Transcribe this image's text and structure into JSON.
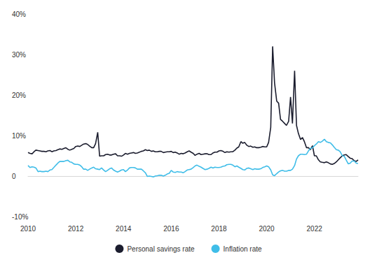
{
  "chart_data": {
    "type": "line",
    "x": [
      2010,
      2010.08,
      2010.17,
      2010.25,
      2010.33,
      2010.42,
      2010.5,
      2010.58,
      2010.67,
      2010.75,
      2010.83,
      2010.92,
      2011,
      2011.08,
      2011.17,
      2011.25,
      2011.33,
      2011.42,
      2011.5,
      2011.58,
      2011.67,
      2011.75,
      2011.83,
      2011.92,
      2012,
      2012.08,
      2012.17,
      2012.25,
      2012.33,
      2012.42,
      2012.5,
      2012.58,
      2012.67,
      2012.75,
      2012.83,
      2012.92,
      2013,
      2013.08,
      2013.17,
      2013.25,
      2013.33,
      2013.42,
      2013.5,
      2013.58,
      2013.67,
      2013.75,
      2013.83,
      2013.92,
      2014,
      2014.08,
      2014.17,
      2014.25,
      2014.33,
      2014.42,
      2014.5,
      2014.58,
      2014.67,
      2014.75,
      2014.83,
      2014.92,
      2015,
      2015.08,
      2015.17,
      2015.25,
      2015.33,
      2015.42,
      2015.5,
      2015.58,
      2015.67,
      2015.75,
      2015.83,
      2015.92,
      2016,
      2016.08,
      2016.17,
      2016.25,
      2016.33,
      2016.42,
      2016.5,
      2016.58,
      2016.67,
      2016.75,
      2016.83,
      2016.92,
      2017,
      2017.08,
      2017.17,
      2017.25,
      2017.33,
      2017.42,
      2017.5,
      2017.58,
      2017.67,
      2017.75,
      2017.83,
      2017.92,
      2018,
      2018.08,
      2018.17,
      2018.25,
      2018.33,
      2018.42,
      2018.5,
      2018.58,
      2018.67,
      2018.75,
      2018.83,
      2018.92,
      2019,
      2019.08,
      2019.17,
      2019.25,
      2019.33,
      2019.42,
      2019.5,
      2019.58,
      2019.67,
      2019.75,
      2019.83,
      2019.92,
      2020,
      2020.08,
      2020.17,
      2020.25,
      2020.33,
      2020.42,
      2020.5,
      2020.58,
      2020.67,
      2020.75,
      2020.83,
      2020.92,
      2021,
      2021.08,
      2021.17,
      2021.25,
      2021.33,
      2021.42,
      2021.5,
      2021.58,
      2021.67,
      2021.75,
      2021.83,
      2021.92,
      2022,
      2022.08,
      2022.17,
      2022.25,
      2022.33,
      2022.42,
      2022.5,
      2022.58,
      2022.67,
      2022.75,
      2022.83,
      2022.92,
      2023,
      2023.08,
      2023.17,
      2023.25,
      2023.33,
      2023.42,
      2023.5,
      2023.58,
      2023.67,
      2023.75,
      2023.83
    ],
    "series": [
      {
        "name": "Personal savings rate",
        "color": "#1b1d2e",
        "values": [
          5.8,
          5.6,
          5.5,
          6.0,
          6.4,
          6.3,
          6.2,
          6.1,
          6.1,
          6.0,
          6.2,
          6.3,
          6.0,
          6.2,
          6.3,
          6.5,
          6.7,
          6.6,
          6.8,
          7.0,
          6.6,
          6.4,
          6.6,
          6.8,
          7.3,
          7.4,
          7.3,
          7.6,
          7.9,
          8.0,
          7.8,
          7.4,
          7.0,
          7.0,
          8.0,
          10.8,
          4.9,
          5.0,
          5.0,
          5.3,
          5.4,
          5.2,
          5.2,
          5.4,
          5.5,
          5.0,
          5.0,
          4.9,
          5.2,
          5.6,
          5.4,
          5.6,
          5.7,
          5.8,
          5.6,
          5.7,
          5.9,
          6.1,
          6.2,
          6.5,
          6.3,
          6.4,
          6.1,
          6.2,
          6.0,
          6.0,
          6.1,
          6.1,
          5.8,
          5.9,
          6.0,
          6.0,
          6.1,
          5.8,
          5.9,
          5.7,
          5.4,
          5.6,
          5.5,
          5.7,
          6.0,
          6.2,
          5.9,
          5.6,
          5.1,
          5.4,
          5.6,
          5.3,
          5.4,
          5.5,
          5.5,
          5.3,
          5.3,
          5.7,
          5.9,
          5.9,
          6.2,
          6.3,
          6.1,
          5.8,
          6.0,
          5.9,
          6.0,
          6.0,
          6.4,
          6.9,
          7.2,
          8.5,
          8.1,
          8.3,
          7.6,
          7.3,
          7.4,
          7.1,
          7.2,
          7.0,
          7.0,
          7.1,
          7.3,
          7.2,
          7.2,
          8.3,
          12.0,
          32.0,
          23.0,
          18.5,
          18.0,
          14.0,
          13.5,
          13.0,
          12.5,
          13.5,
          19.5,
          13.0,
          26.0,
          12.5,
          10.5,
          9.0,
          9.5,
          8.5,
          7.0,
          7.0,
          6.5,
          7.5,
          5.0,
          5.0,
          4.0,
          3.5,
          3.4,
          3.3,
          3.5,
          3.3,
          3.0,
          2.9,
          3.1,
          3.5,
          4.0,
          4.5,
          5.0,
          5.2,
          5.3,
          4.8,
          4.4,
          4.3,
          3.8,
          3.6,
          4.0
        ]
      },
      {
        "name": "Inflation rate",
        "color": "#3fbde8",
        "values": [
          2.6,
          2.1,
          2.3,
          2.2,
          2.0,
          1.1,
          1.2,
          1.1,
          1.1,
          1.2,
          1.1,
          1.5,
          1.6,
          2.1,
          2.7,
          3.2,
          3.6,
          3.6,
          3.6,
          3.8,
          3.9,
          3.5,
          3.4,
          3.0,
          2.9,
          2.9,
          2.7,
          2.3,
          1.7,
          1.7,
          1.4,
          1.7,
          2.0,
          2.2,
          1.8,
          1.7,
          1.6,
          2.0,
          1.5,
          1.1,
          1.4,
          1.8,
          2.0,
          1.5,
          1.2,
          1.0,
          1.2,
          1.5,
          1.6,
          1.1,
          1.5,
          2.0,
          2.1,
          2.1,
          2.0,
          1.7,
          1.7,
          1.7,
          1.3,
          0.8,
          -0.1,
          0.0,
          -0.1,
          -0.2,
          0.0,
          0.1,
          0.2,
          0.2,
          0.0,
          0.2,
          0.5,
          0.7,
          1.4,
          1.0,
          0.9,
          1.1,
          1.0,
          1.0,
          0.8,
          1.1,
          1.5,
          1.6,
          1.7,
          2.1,
          2.5,
          2.7,
          2.4,
          2.2,
          1.9,
          1.6,
          1.7,
          1.9,
          2.2,
          2.0,
          2.2,
          2.1,
          2.1,
          2.2,
          2.4,
          2.5,
          2.8,
          2.9,
          2.9,
          2.7,
          2.3,
          2.5,
          2.2,
          1.9,
          1.6,
          1.5,
          1.9,
          2.0,
          1.8,
          1.6,
          1.8,
          1.7,
          1.7,
          1.8,
          2.1,
          2.3,
          2.5,
          2.3,
          1.5,
          0.3,
          0.1,
          0.6,
          1.0,
          1.3,
          1.4,
          1.2,
          1.2,
          1.4,
          1.4,
          1.7,
          2.6,
          4.2,
          5.0,
          5.4,
          5.4,
          5.3,
          5.4,
          6.2,
          6.8,
          7.0,
          7.5,
          7.9,
          8.5,
          8.3,
          8.6,
          9.1,
          8.5,
          8.3,
          8.2,
          7.7,
          7.1,
          6.5,
          6.4,
          6.0,
          5.0,
          4.9,
          4.0,
          3.0,
          3.2,
          3.7,
          3.7,
          3.2,
          3.1
        ]
      }
    ],
    "xlim": [
      2010,
      2023.83
    ],
    "xticks": [
      2010,
      2012,
      2014,
      2016,
      2018,
      2020,
      2022
    ],
    "ylim": [
      -10,
      40
    ],
    "yticks": [
      {
        "value": -10,
        "label": "-10%"
      },
      0,
      {
        "value": 10,
        "label": "10%"
      },
      {
        "value": 20,
        "label": "20%"
      },
      {
        "value": 30,
        "label": "30%"
      },
      {
        "value": 40,
        "label": "40%"
      }
    ],
    "grid": false,
    "legend": "bottom"
  }
}
